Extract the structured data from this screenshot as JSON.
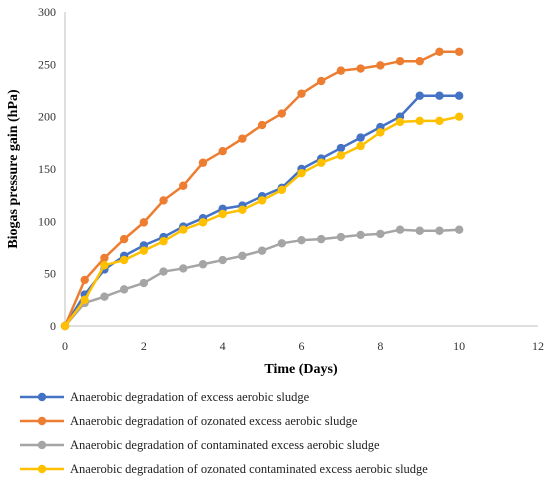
{
  "chart_data": {
    "type": "line",
    "xlabel": "Time (Days)",
    "ylabel": "Biogas pressure gain (hPa)",
    "xlim": [
      0,
      12
    ],
    "ylim": [
      0,
      300
    ],
    "x_ticks": [
      0,
      2,
      4,
      6,
      8,
      10,
      12
    ],
    "y_ticks": [
      0,
      50,
      100,
      150,
      200,
      250,
      300
    ],
    "grid": false,
    "legend_position": "bottom",
    "series": [
      {
        "name": "Anaerobic degradation of excess aerobic sludge",
        "color": "#4472C4",
        "x": [
          0,
          0.5,
          1,
          1.5,
          2,
          2.5,
          3,
          3.5,
          4,
          4.5,
          5,
          5.5,
          6,
          6.5,
          7,
          7.5,
          8,
          8.5,
          9,
          9.5,
          10
        ],
        "y": [
          0,
          30,
          54,
          67,
          77,
          85,
          95,
          103,
          112,
          115,
          124,
          132,
          150,
          160,
          170,
          180,
          190,
          200,
          220,
          220,
          220
        ]
      },
      {
        "name": "Anaerobic degradation of ozonated excess aerobic sludge",
        "color": "#ED7D31",
        "x": [
          0,
          0.5,
          1,
          1.5,
          2,
          2.5,
          3,
          3.5,
          4,
          4.5,
          5,
          5.5,
          6,
          6.5,
          7,
          7.5,
          8,
          8.5,
          9,
          9.5,
          10
        ],
        "y": [
          0,
          44,
          65,
          83,
          99,
          120,
          134,
          156,
          167,
          179,
          192,
          203,
          222,
          234,
          244,
          246,
          249,
          253,
          253,
          262,
          262
        ]
      },
      {
        "name": "Anaerobic degradation of contaminated excess aerobic sludge",
        "color": "#A5A5A5",
        "x": [
          0,
          0.5,
          1,
          1.5,
          2,
          2.5,
          3,
          3.5,
          4,
          4.5,
          5,
          5.5,
          6,
          6.5,
          7,
          7.5,
          8,
          8.5,
          9,
          9.5,
          10
        ],
        "y": [
          0,
          22,
          28,
          35,
          41,
          52,
          55,
          59,
          63,
          67,
          72,
          79,
          82,
          83,
          85,
          87,
          88,
          92,
          91,
          91,
          92
        ]
      },
      {
        "name": "Anaerobic degradation of ozonated contaminated excess aerobic sludge",
        "color": "#FFC000",
        "x": [
          0,
          0.5,
          1,
          1.5,
          2,
          2.5,
          3,
          3.5,
          4,
          4.5,
          5,
          5.5,
          6,
          6.5,
          7,
          7.5,
          8,
          8.5,
          9,
          9.5,
          10
        ],
        "y": [
          0,
          25,
          58,
          63,
          72,
          81,
          92,
          99,
          107,
          111,
          120,
          130,
          146,
          156,
          163,
          172,
          185,
          195,
          196,
          196,
          200
        ]
      }
    ]
  }
}
